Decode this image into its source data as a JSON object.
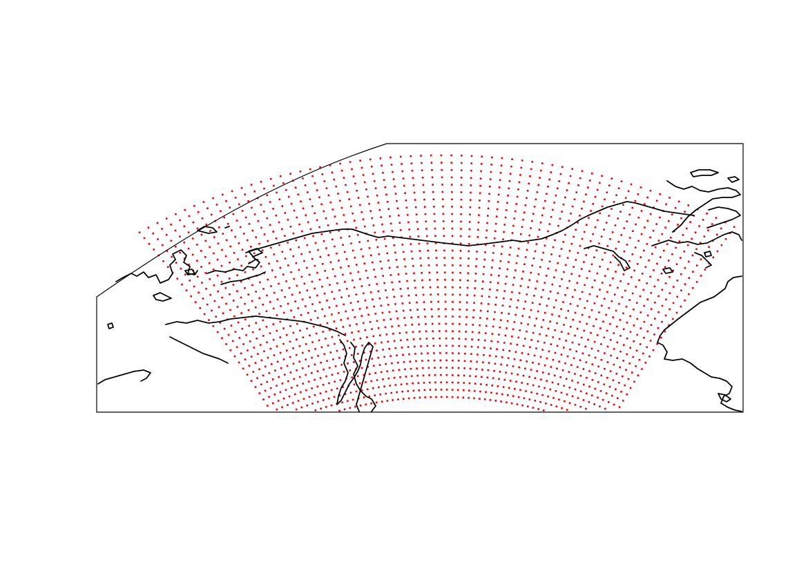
{
  "figure": {
    "type": "map",
    "projection_shape": "conic",
    "frame_color": "#000000",
    "coastline_color": "#000000",
    "grid_point_color": "#ee0000",
    "grid_point_marker": "small-square",
    "grid_rows": 34,
    "grid_cols": 62
  }
}
